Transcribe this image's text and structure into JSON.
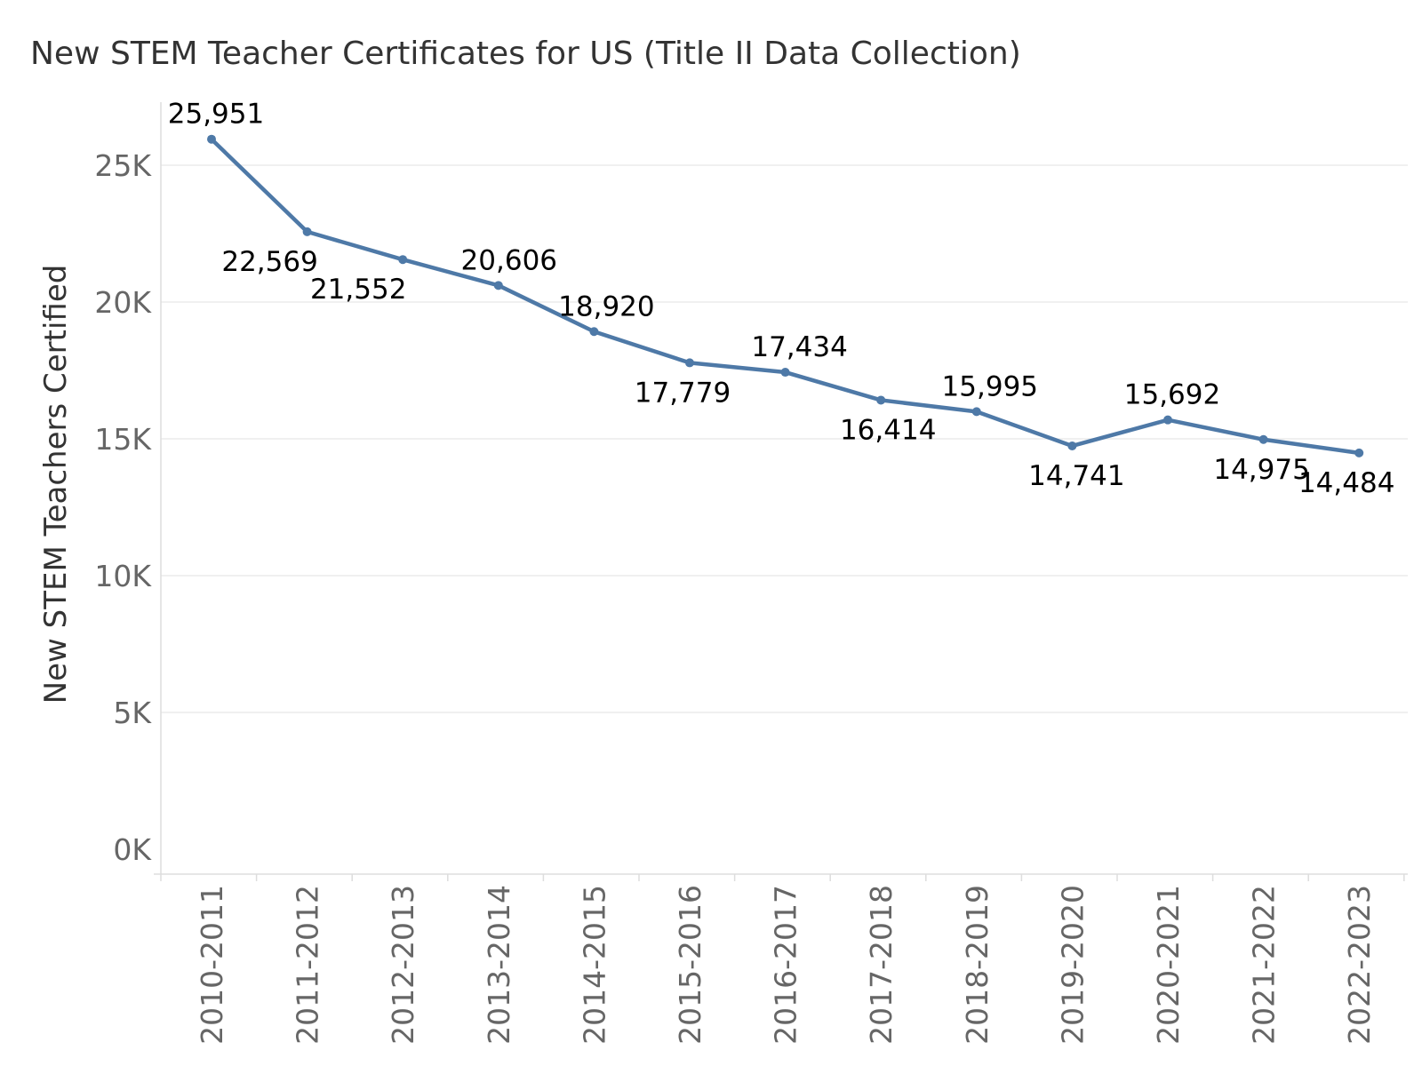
{
  "chart_data": {
    "type": "line",
    "title": "New STEM Teacher Certificates for US (Title II Data Collection)",
    "xlabel": "",
    "ylabel": "New STEM Teachers Certified",
    "categories": [
      "2010-2011",
      "2011-2012",
      "2012-2013",
      "2013-2014",
      "2014-2015",
      "2015-2016",
      "2016-2017",
      "2017-2018",
      "2018-2019",
      "2019-2020",
      "2020-2021",
      "2021-2022",
      "2022-2023"
    ],
    "series": [
      {
        "values": [
          25951,
          22569,
          21552,
          20606,
          18920,
          17779,
          17434,
          16414,
          15995,
          14741,
          15692,
          14975,
          14484
        ],
        "value_labels": [
          "25,951",
          "22,569",
          "21,552",
          "20,606",
          "18,920",
          "17,779",
          "17,434",
          "16,414",
          "15,995",
          "14,741",
          "15,692",
          "14,975",
          "14,484"
        ]
      }
    ],
    "yticks": [
      0,
      5000,
      10000,
      15000,
      20000,
      25000
    ],
    "ytick_labels": [
      "0K",
      "5K",
      "10K",
      "15K",
      "20K",
      "25K"
    ],
    "ylim": [
      0,
      27000
    ],
    "grid": true,
    "legend": "none",
    "colors": {
      "line": "#4e79a7",
      "grid": "#ececec",
      "axis": "#dddddd"
    }
  }
}
